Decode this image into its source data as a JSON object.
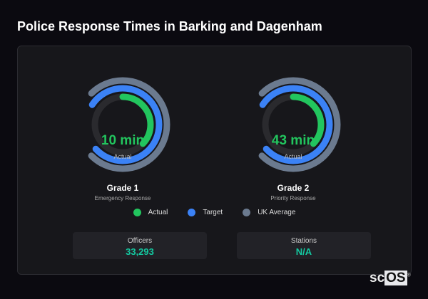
{
  "title": "Police Response Times in Barking and Dagenham",
  "gauges": [
    {
      "name": "Grade 1",
      "desc": "Emergency Response",
      "value": "10 min",
      "value_label": "Actual",
      "arcs": {
        "actual": 0.37,
        "target": 0.79,
        "uk_average": 0.75
      }
    },
    {
      "name": "Grade 2",
      "desc": "Priority Response",
      "value": "43 min",
      "value_label": "Actual",
      "arcs": {
        "actual": 0.37,
        "target": 0.79,
        "uk_average": 0.75
      }
    }
  ],
  "legend": [
    {
      "label": "Actual",
      "color": "#22c55e"
    },
    {
      "label": "Target",
      "color": "#3b82f6"
    },
    {
      "label": "UK Average",
      "color": "#6b7a8f"
    }
  ],
  "stats": [
    {
      "label": "Officers",
      "value": "33,293"
    },
    {
      "label": "Stations",
      "value": "N/A"
    }
  ],
  "logo": "scOS"
}
